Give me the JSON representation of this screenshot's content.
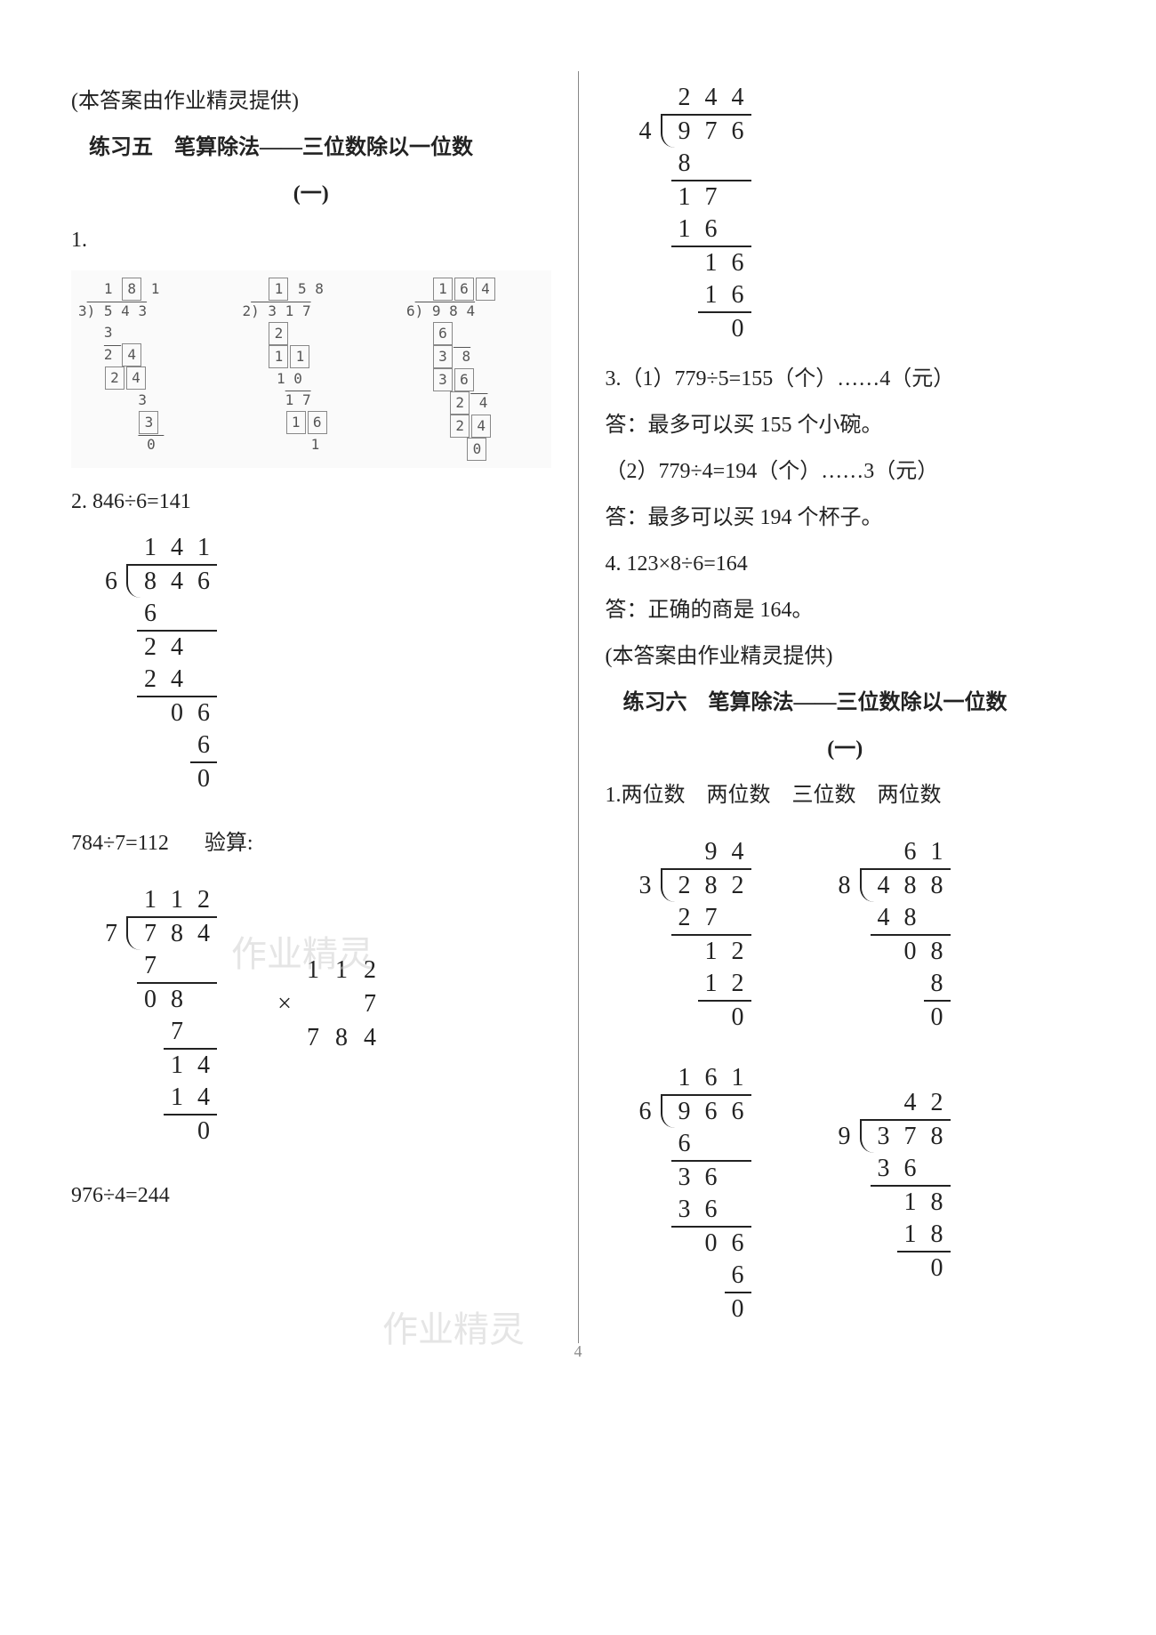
{
  "left": {
    "attrib": "(本答案由作业精灵提供)",
    "title": "练习五　笔算除法——三位数除以一位数",
    "sub": "(一)",
    "p1_label": "1.",
    "p1_sub1_quotient": "1 8 1",
    "p1_sub1_divisor": "3",
    "p1_sub1_dividend": "5 4 3",
    "p1_sub2_quotient": "1 5 8",
    "p1_sub2_divisor": "2",
    "p1_sub2_dividend": "3 1 7",
    "p1_sub3_quotient": "1 6 4",
    "p1_sub3_divisor": "6",
    "p1_sub3_dividend": "9 8 4",
    "p2_label": "2. 846÷6=141",
    "p2_div": {
      "type": "long-division",
      "divisor": "6",
      "dividend": [
        "8",
        "4",
        "6"
      ],
      "quotient": [
        "1",
        "4",
        "1"
      ],
      "work": [
        {
          "cells": [
            "6",
            "",
            ""
          ],
          "lineAfter": true,
          "start": 0
        },
        {
          "cells": [
            "2",
            "4",
            ""
          ],
          "start": 0
        },
        {
          "cells": [
            "2",
            "4",
            ""
          ],
          "lineAfter": true,
          "start": 0
        },
        {
          "cells": [
            "",
            "0",
            "6"
          ],
          "start": 0
        },
        {
          "cells": [
            "",
            "",
            "6"
          ],
          "lineAfter": true,
          "start": 0
        },
        {
          "cells": [
            "",
            "",
            "0"
          ],
          "start": 0
        }
      ]
    },
    "p2b_label": "784÷7=112",
    "p2b_check_label": "验算:",
    "p2b_div": {
      "divisor": "7",
      "dividend": [
        "7",
        "8",
        "4"
      ],
      "quotient": [
        "1",
        "1",
        "2"
      ],
      "work": [
        {
          "cells": [
            "7",
            "",
            ""
          ],
          "lineAfter": true,
          "start": 0
        },
        {
          "cells": [
            "0",
            "8",
            ""
          ],
          "start": 0
        },
        {
          "cells": [
            "",
            "7",
            ""
          ],
          "lineAfter": true,
          "start": 0
        },
        {
          "cells": [
            "",
            "1",
            "4"
          ],
          "start": 0
        },
        {
          "cells": [
            "",
            "1",
            "4"
          ],
          "lineAfter": true,
          "start": 0
        },
        {
          "cells": [
            "",
            "",
            "0"
          ],
          "start": 0
        }
      ]
    },
    "p2b_mult_top": [
      "1",
      "1",
      "2"
    ],
    "p2b_mult_factor": "7",
    "p2b_mult_result": [
      "7",
      "8",
      "4"
    ],
    "p2c_label": "976÷4=244"
  },
  "right": {
    "top_div": {
      "divisor": "4",
      "dividend": [
        "9",
        "7",
        "6"
      ],
      "quotient": [
        "2",
        "4",
        "4"
      ],
      "work": [
        {
          "cells": [
            "8",
            "",
            ""
          ],
          "lineAfter": true,
          "start": 0
        },
        {
          "cells": [
            "1",
            "7",
            ""
          ],
          "start": 0
        },
        {
          "cells": [
            "1",
            "6",
            ""
          ],
          "lineAfter": true,
          "start": 0
        },
        {
          "cells": [
            "",
            "1",
            "6"
          ],
          "start": 0
        },
        {
          "cells": [
            "",
            "1",
            "6"
          ],
          "lineAfter": true,
          "start": 0
        },
        {
          "cells": [
            "",
            "",
            "0"
          ],
          "start": 0
        }
      ]
    },
    "p3_1": "3.（1）779÷5=155（个）……4（元）",
    "p3_1_ans": "答：最多可以买 155 个小碗。",
    "p3_2": "（2）779÷4=194（个）……3（元）",
    "p3_2_ans": "答：最多可以买 194 个杯子。",
    "p4": "4. 123×8÷6=164",
    "p4_ans": "答：正确的商是 164。",
    "attrib": "(本答案由作业精灵提供)",
    "title": "练习六　笔算除法——三位数除以一位数",
    "sub": "(一)",
    "p1_head": "1.两位数　两位数　三位数　两位数",
    "divA": {
      "divisor": "3",
      "dividend": [
        "2",
        "8",
        "2"
      ],
      "quotient": [
        "",
        "9",
        "4"
      ],
      "work": [
        {
          "cells": [
            "2",
            "7",
            ""
          ],
          "lineAfter": true,
          "start": 0
        },
        {
          "cells": [
            "",
            "1",
            "2"
          ],
          "start": 0
        },
        {
          "cells": [
            "",
            "1",
            "2"
          ],
          "lineAfter": true,
          "start": 0
        },
        {
          "cells": [
            "",
            "",
            "0"
          ],
          "start": 0
        }
      ]
    },
    "divB": {
      "divisor": "8",
      "dividend": [
        "4",
        "8",
        "8"
      ],
      "quotient": [
        "",
        "6",
        "1"
      ],
      "work": [
        {
          "cells": [
            "4",
            "8",
            ""
          ],
          "lineAfter": true,
          "start": 0
        },
        {
          "cells": [
            "",
            "0",
            "8"
          ],
          "start": 0
        },
        {
          "cells": [
            "",
            "",
            "8"
          ],
          "lineAfter": true,
          "start": 0
        },
        {
          "cells": [
            "",
            "",
            "0"
          ],
          "start": 0
        }
      ]
    },
    "divC": {
      "divisor": "6",
      "dividend": [
        "9",
        "6",
        "6"
      ],
      "quotient": [
        "1",
        "6",
        "1"
      ],
      "work": [
        {
          "cells": [
            "6",
            "",
            ""
          ],
          "lineAfter": true,
          "start": 0
        },
        {
          "cells": [
            "3",
            "6",
            ""
          ],
          "start": 0
        },
        {
          "cells": [
            "3",
            "6",
            ""
          ],
          "lineAfter": true,
          "start": 0
        },
        {
          "cells": [
            "",
            "0",
            "6"
          ],
          "start": 0
        },
        {
          "cells": [
            "",
            "",
            "6"
          ],
          "lineAfter": true,
          "start": 0
        },
        {
          "cells": [
            "",
            "",
            "0"
          ],
          "start": 0
        }
      ]
    },
    "divD": {
      "divisor": "9",
      "dividend": [
        "3",
        "7",
        "8"
      ],
      "quotient": [
        "",
        "4",
        "2"
      ],
      "work": [
        {
          "cells": [
            "3",
            "6",
            ""
          ],
          "lineAfter": true,
          "start": 0
        },
        {
          "cells": [
            "",
            "1",
            "8"
          ],
          "start": 0
        },
        {
          "cells": [
            "",
            "1",
            "8"
          ],
          "lineAfter": true,
          "start": 0
        },
        {
          "cells": [
            "",
            "",
            "0"
          ],
          "start": 0
        }
      ]
    }
  },
  "pagenum": "4",
  "watermark": "作业精灵",
  "colors": {
    "text": "#222222",
    "bg": "#ffffff",
    "light": "#888888",
    "wm": "#cccccc"
  }
}
